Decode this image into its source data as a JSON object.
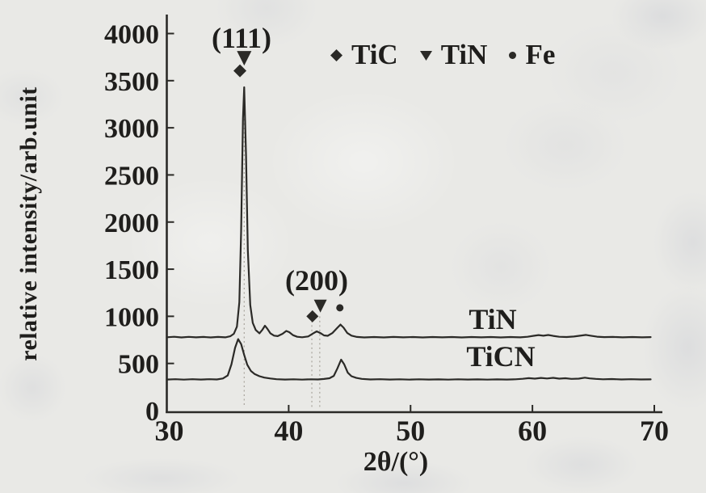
{
  "figure": {
    "background": "#e9e9e6",
    "ink": "#2b2a27",
    "guide_color": "#a8a49c"
  },
  "chart_data": {
    "type": "line",
    "title": "",
    "xlabel": "2θ/(°)",
    "ylabel": "relative intensity/arb.unit",
    "xlim": [
      30,
      70
    ],
    "ylim": [
      0,
      4000
    ],
    "x_ticks": [
      30,
      40,
      50,
      60,
      70
    ],
    "y_ticks": [
      0,
      500,
      1000,
      1500,
      2000,
      2500,
      3000,
      3500,
      4000
    ],
    "grid": false,
    "legend_position": "top",
    "legend": [
      {
        "marker": "diamond",
        "label": "TiC"
      },
      {
        "marker": "triangle-down",
        "label": "TiN"
      },
      {
        "marker": "circle",
        "label": "Fe"
      }
    ],
    "annotations": [
      {
        "text": "(111)",
        "x": 36.1,
        "y": 3960
      },
      {
        "text": "(200)",
        "x": 42.3,
        "y": 1390
      }
    ],
    "peak_markers": [
      {
        "shape": "triangle-down",
        "x": 36.35,
        "y": 3745,
        "size": 18
      },
      {
        "shape": "diamond",
        "x": 36.0,
        "y": 3605,
        "size": 16
      },
      {
        "shape": "triangle-down",
        "x": 42.6,
        "y": 1115,
        "size": 16
      },
      {
        "shape": "diamond",
        "x": 41.95,
        "y": 1000,
        "size": 15
      },
      {
        "shape": "circle",
        "x": 44.2,
        "y": 1090,
        "size": 9
      }
    ],
    "guides": [
      {
        "x": 36.35,
        "y1": 60,
        "y2": 3400
      },
      {
        "x": 41.9,
        "y1": 40,
        "y2": 1020
      },
      {
        "x": 42.55,
        "y1": 40,
        "y2": 1020
      }
    ],
    "series": [
      {
        "name": "TiN",
        "points": [
          [
            30,
            778
          ],
          [
            30.6,
            783
          ],
          [
            31.2,
            776
          ],
          [
            31.8,
            782
          ],
          [
            32.4,
            777
          ],
          [
            33,
            781
          ],
          [
            33.6,
            776
          ],
          [
            34.2,
            781
          ],
          [
            34.8,
            777
          ],
          [
            35.2,
            788
          ],
          [
            35.5,
            815
          ],
          [
            35.75,
            890
          ],
          [
            35.95,
            1150
          ],
          [
            36.1,
            1900
          ],
          [
            36.25,
            3100
          ],
          [
            36.35,
            3430
          ],
          [
            36.5,
            2700
          ],
          [
            36.65,
            1700
          ],
          [
            36.85,
            1120
          ],
          [
            37.05,
            930
          ],
          [
            37.3,
            855
          ],
          [
            37.6,
            820
          ],
          [
            37.85,
            858
          ],
          [
            38.05,
            900
          ],
          [
            38.25,
            868
          ],
          [
            38.5,
            820
          ],
          [
            38.8,
            795
          ],
          [
            39.1,
            790
          ],
          [
            39.5,
            815
          ],
          [
            39.8,
            845
          ],
          [
            40.05,
            832
          ],
          [
            40.35,
            800
          ],
          [
            40.7,
            783
          ],
          [
            41.1,
            778
          ],
          [
            41.6,
            786
          ],
          [
            42,
            818
          ],
          [
            42.3,
            840
          ],
          [
            42.6,
            822
          ],
          [
            42.9,
            797
          ],
          [
            43.2,
            793
          ],
          [
            43.6,
            824
          ],
          [
            43.95,
            872
          ],
          [
            44.25,
            912
          ],
          [
            44.5,
            880
          ],
          [
            44.8,
            824
          ],
          [
            45.15,
            795
          ],
          [
            45.6,
            781
          ],
          [
            46.2,
            776
          ],
          [
            47,
            780
          ],
          [
            47.8,
            776
          ],
          [
            48.6,
            781
          ],
          [
            49.4,
            777
          ],
          [
            50.2,
            780
          ],
          [
            51,
            776
          ],
          [
            51.8,
            780
          ],
          [
            52.6,
            777
          ],
          [
            53.4,
            780
          ],
          [
            54.2,
            776
          ],
          [
            55,
            780
          ],
          [
            55.8,
            777
          ],
          [
            56.6,
            780
          ],
          [
            57.4,
            776
          ],
          [
            58.2,
            780
          ],
          [
            59,
            777
          ],
          [
            59.6,
            783
          ],
          [
            60.1,
            793
          ],
          [
            60.5,
            801
          ],
          [
            60.9,
            794
          ],
          [
            61.3,
            802
          ],
          [
            61.7,
            792
          ],
          [
            62.2,
            783
          ],
          [
            62.8,
            780
          ],
          [
            63.4,
            785
          ],
          [
            63.9,
            794
          ],
          [
            64.4,
            803
          ],
          [
            64.8,
            794
          ],
          [
            65.3,
            784
          ],
          [
            65.9,
            779
          ],
          [
            66.6,
            781
          ],
          [
            67.4,
            777
          ],
          [
            68.2,
            780
          ],
          [
            69,
            777
          ],
          [
            69.7,
            779
          ]
        ]
      },
      {
        "name": "TiCN",
        "points": [
          [
            30,
            329
          ],
          [
            30.7,
            333
          ],
          [
            31.4,
            328
          ],
          [
            32.1,
            333
          ],
          [
            32.8,
            329
          ],
          [
            33.5,
            333
          ],
          [
            34.1,
            330
          ],
          [
            34.6,
            340
          ],
          [
            35,
            372
          ],
          [
            35.3,
            490
          ],
          [
            35.6,
            665
          ],
          [
            35.85,
            758
          ],
          [
            36.1,
            706
          ],
          [
            36.35,
            590
          ],
          [
            36.6,
            486
          ],
          [
            36.9,
            420
          ],
          [
            37.2,
            388
          ],
          [
            37.6,
            364
          ],
          [
            38,
            350
          ],
          [
            38.5,
            340
          ],
          [
            39,
            333
          ],
          [
            39.7,
            329
          ],
          [
            40.4,
            332
          ],
          [
            41.1,
            328
          ],
          [
            41.8,
            332
          ],
          [
            42.4,
            330
          ],
          [
            42.9,
            335
          ],
          [
            43.35,
            343
          ],
          [
            43.7,
            368
          ],
          [
            44,
            448
          ],
          [
            44.3,
            540
          ],
          [
            44.55,
            492
          ],
          [
            44.85,
            402
          ],
          [
            45.15,
            364
          ],
          [
            45.55,
            346
          ],
          [
            46,
            336
          ],
          [
            46.7,
            330
          ],
          [
            47.5,
            333
          ],
          [
            48.3,
            329
          ],
          [
            49.1,
            332
          ],
          [
            49.9,
            328
          ],
          [
            50.7,
            332
          ],
          [
            51.5,
            329
          ],
          [
            52.3,
            331
          ],
          [
            53.1,
            328
          ],
          [
            53.9,
            332
          ],
          [
            54.7,
            329
          ],
          [
            55.5,
            331
          ],
          [
            56.3,
            328
          ],
          [
            57.1,
            331
          ],
          [
            57.9,
            329
          ],
          [
            58.6,
            332
          ],
          [
            59.2,
            337
          ],
          [
            59.7,
            344
          ],
          [
            60.2,
            339
          ],
          [
            60.7,
            346
          ],
          [
            61.2,
            340
          ],
          [
            61.7,
            347
          ],
          [
            62.2,
            339
          ],
          [
            62.7,
            343
          ],
          [
            63.2,
            336
          ],
          [
            63.8,
            339
          ],
          [
            64.3,
            349
          ],
          [
            64.7,
            341
          ],
          [
            65.2,
            336
          ],
          [
            65.8,
            332
          ],
          [
            66.5,
            334
          ],
          [
            67.3,
            330
          ],
          [
            68.1,
            333
          ],
          [
            68.9,
            330
          ],
          [
            69.7,
            331
          ]
        ]
      }
    ]
  }
}
